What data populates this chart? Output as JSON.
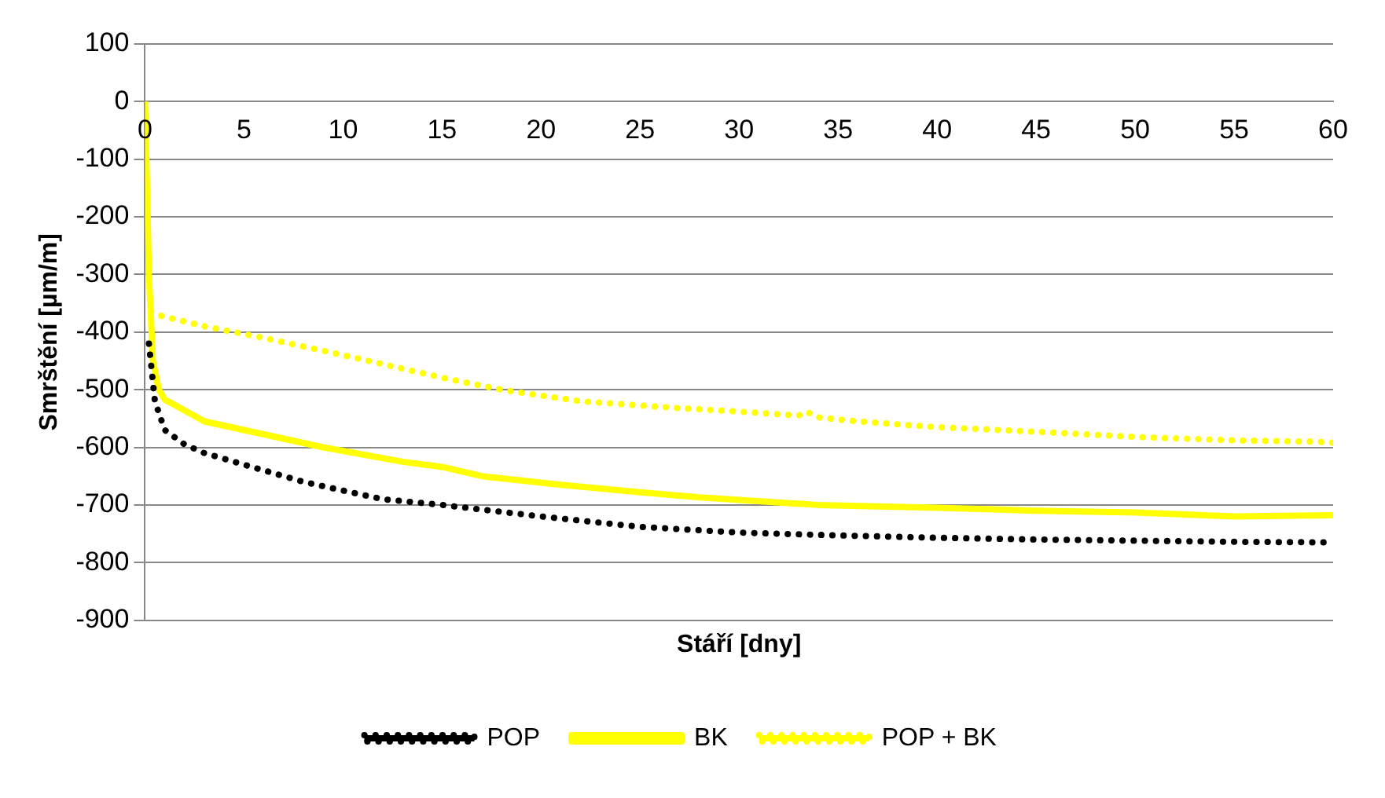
{
  "chart_data": {
    "type": "line",
    "xlabel": "Stáří [dny]",
    "ylabel": "Smrštění [µm/m]",
    "xlim": [
      0,
      60
    ],
    "xticks": [
      0,
      5,
      10,
      15,
      20,
      25,
      30,
      35,
      40,
      45,
      50,
      55,
      60
    ],
    "ylim": [
      -900,
      100
    ],
    "yticks": [
      -900,
      -800,
      -700,
      -600,
      -500,
      -400,
      -300,
      -200,
      -100,
      0,
      100
    ],
    "grid": "y",
    "legend": "bottom",
    "marker": "none",
    "series": [
      {
        "name": "POP",
        "color": "#000000",
        "line_style": "dotted",
        "x": [
          0.2,
          0.5,
          1,
          2,
          3,
          5,
          8,
          12,
          15,
          20,
          25,
          30,
          34,
          40,
          45,
          50,
          55,
          60
        ],
        "values": [
          -420,
          -520,
          -570,
          -595,
          -610,
          -630,
          -660,
          -690,
          -700,
          -720,
          -738,
          -748,
          -752,
          -757,
          -760,
          -762,
          -764,
          -765
        ]
      },
      {
        "name": "BK",
        "color": "#ffff00",
        "line_style": "solid",
        "x": [
          0,
          0.2,
          0.4,
          0.7,
          1,
          3,
          5,
          9,
          13,
          15,
          17,
          21,
          25,
          28,
          34,
          40,
          45,
          50,
          55,
          60
        ],
        "values": [
          0,
          -300,
          -450,
          -500,
          -517,
          -555,
          -570,
          -600,
          -625,
          -634,
          -650,
          -665,
          -678,
          -687,
          -700,
          -705,
          -710,
          -713,
          -720,
          -718
        ]
      },
      {
        "name": "POP + BK",
        "color": "#ffff00",
        "line_style": "dotted",
        "x": [
          0.3,
          0.6,
          3,
          6,
          10,
          15.4,
          18,
          22,
          27,
          31,
          33,
          33.4,
          34,
          36,
          40,
          45,
          50,
          55,
          59.1,
          60
        ],
        "values": [
          -365,
          -370,
          -390,
          -410,
          -440,
          -482,
          -500,
          -520,
          -532,
          -540,
          -545,
          -538,
          -548,
          -555,
          -565,
          -573,
          -582,
          -588,
          -590,
          -592
        ]
      }
    ]
  }
}
